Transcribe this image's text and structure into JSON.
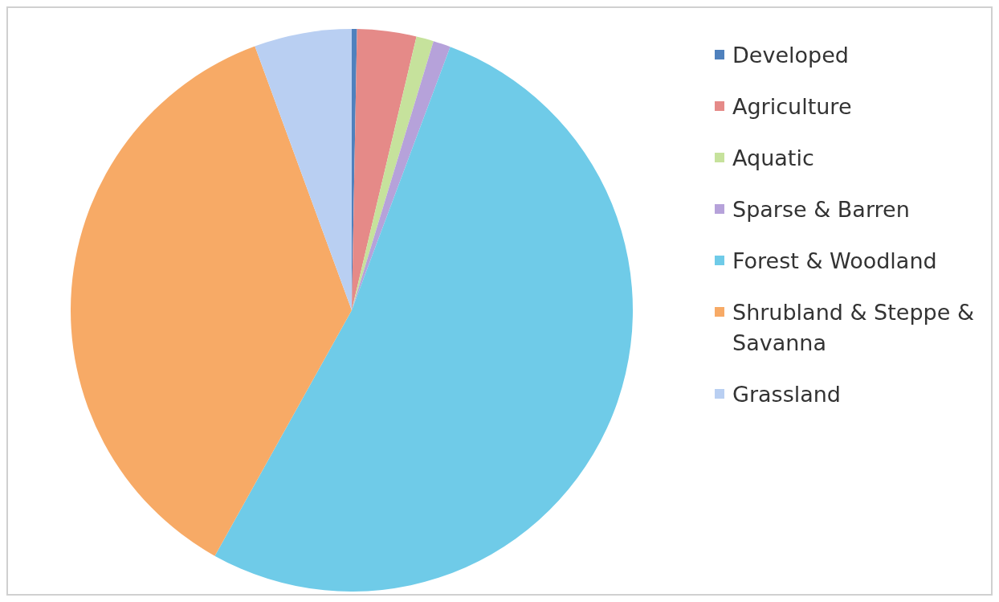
{
  "chart_data": {
    "type": "pie",
    "categories": [
      "Developed",
      "Agriculture",
      "Aquatic",
      "Sparse & Barren",
      "Forest & Woodland",
      "Shrubland & Steppe & Savanna",
      "Grassland"
    ],
    "values": [
      0.3,
      3.4,
      1.0,
      1.0,
      52.4,
      36.3,
      5.6
    ],
    "colors": [
      "#4f81bd",
      "#e58a88",
      "#c6e29c",
      "#b6a2da",
      "#6fcbe8",
      "#f7aa66",
      "#b9cff2"
    ],
    "legend": "right"
  }
}
